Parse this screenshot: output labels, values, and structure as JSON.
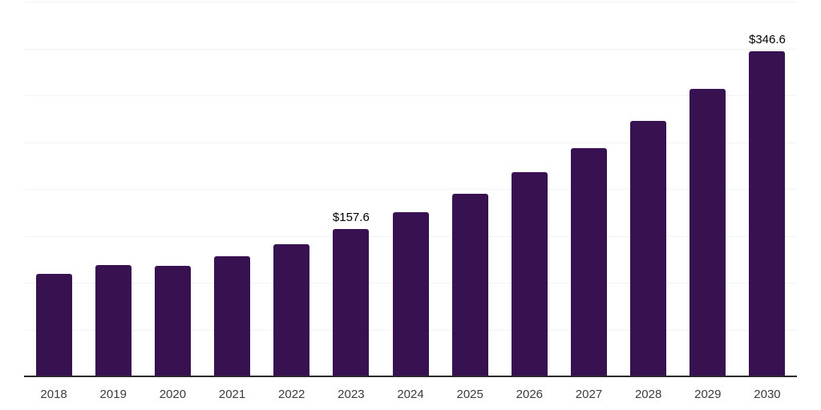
{
  "chart": {
    "background_color": "#ffffff",
    "bar_color": "#371150",
    "axis_line_color": "#2a2a2e",
    "gridline_color": "#f3f3f5",
    "tick_label_color": "#3b3b3b",
    "value_label_color": "#000000"
  },
  "chart_data": {
    "type": "bar",
    "title": "",
    "xlabel": "",
    "ylabel": "",
    "categories": [
      "2018",
      "2019",
      "2020",
      "2021",
      "2022",
      "2023",
      "2024",
      "2025",
      "2026",
      "2027",
      "2028",
      "2029",
      "2030"
    ],
    "values": [
      109,
      119,
      118,
      128,
      141,
      157.6,
      175,
      195,
      218,
      244,
      273,
      307,
      346.6
    ],
    "data_labels": [
      {
        "category": "2023",
        "text": "$157.6"
      },
      {
        "category": "2030",
        "text": "$346.6"
      }
    ],
    "ylim": [
      0,
      400
    ],
    "grid": "horizontal",
    "gridline_count": 8,
    "legend": "none"
  }
}
